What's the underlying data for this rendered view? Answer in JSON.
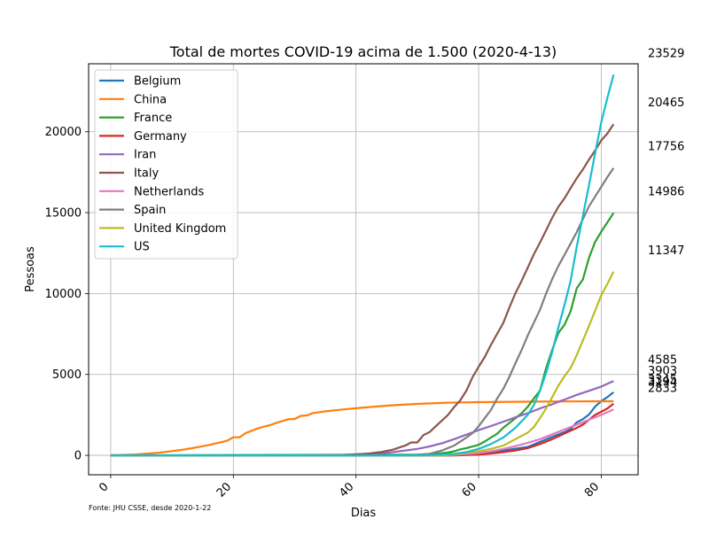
{
  "chart_data": {
    "type": "line",
    "title": "Total de mortes COVID-19 acima de 1.500 (2020-4-13)",
    "xlabel": "Dias",
    "ylabel": "Pessoas",
    "source": "Fonte: JHU CSSE, desde 2020-1-22",
    "xlim": [
      -3.6,
      86
    ],
    "ylim": [
      -1200,
      24200
    ],
    "x_ticks": [
      0,
      20,
      40,
      60,
      80
    ],
    "y_ticks": [
      0,
      5000,
      10000,
      15000,
      20000
    ],
    "grid": true,
    "legend_position": "upper left",
    "series": [
      {
        "name": "Belgium",
        "color": "#1f77b4",
        "end_label": "3903",
        "points": [
          [
            0,
            0
          ],
          [
            55,
            0
          ],
          [
            60,
            60
          ],
          [
            64,
            300
          ],
          [
            68,
            520
          ],
          [
            70,
            830
          ],
          [
            72,
            1150
          ],
          [
            74,
            1440
          ],
          [
            75,
            1630
          ],
          [
            76,
            2040
          ],
          [
            77,
            2240
          ],
          [
            78,
            2520
          ],
          [
            79,
            3020
          ],
          [
            80,
            3350
          ],
          [
            81,
            3600
          ],
          [
            82,
            3903
          ]
        ]
      },
      {
        "name": "China",
        "color": "#ff7f0e",
        "end_label": "3345",
        "points": [
          [
            0,
            17
          ],
          [
            2,
            26
          ],
          [
            4,
            56
          ],
          [
            6,
            106
          ],
          [
            8,
            170
          ],
          [
            10,
            259
          ],
          [
            12,
            361
          ],
          [
            14,
            490
          ],
          [
            16,
            638
          ],
          [
            18,
            813
          ],
          [
            19,
            910
          ],
          [
            20,
            1113
          ],
          [
            21,
            1118
          ],
          [
            22,
            1371
          ],
          [
            23,
            1523
          ],
          [
            24,
            1666
          ],
          [
            25,
            1770
          ],
          [
            26,
            1868
          ],
          [
            27,
            2007
          ],
          [
            28,
            2122
          ],
          [
            29,
            2239
          ],
          [
            30,
            2250
          ],
          [
            31,
            2442
          ],
          [
            32,
            2467
          ],
          [
            33,
            2615
          ],
          [
            35,
            2717
          ],
          [
            38,
            2838
          ],
          [
            40,
            2912
          ],
          [
            43,
            3012
          ],
          [
            46,
            3099
          ],
          [
            50,
            3180
          ],
          [
            55,
            3255
          ],
          [
            60,
            3290
          ],
          [
            66,
            3310
          ],
          [
            70,
            3320
          ],
          [
            74,
            3335
          ],
          [
            82,
            3345
          ]
        ]
      },
      {
        "name": "France",
        "color": "#2ca02c",
        "end_label": "14986",
        "points": [
          [
            0,
            0
          ],
          [
            50,
            50
          ],
          [
            53,
            100
          ],
          [
            55,
            180
          ],
          [
            56,
            250
          ],
          [
            57,
            370
          ],
          [
            58,
            450
          ],
          [
            60,
            650
          ],
          [
            61,
            860
          ],
          [
            62,
            1100
          ],
          [
            63,
            1330
          ],
          [
            64,
            1700
          ],
          [
            65,
            2000
          ],
          [
            66,
            2300
          ],
          [
            67,
            2600
          ],
          [
            68,
            3000
          ],
          [
            69,
            3520
          ],
          [
            70,
            4000
          ],
          [
            71,
            5390
          ],
          [
            72,
            6520
          ],
          [
            73,
            7560
          ],
          [
            74,
            8080
          ],
          [
            75,
            8910
          ],
          [
            76,
            10330
          ],
          [
            77,
            10870
          ],
          [
            78,
            12210
          ],
          [
            79,
            13200
          ],
          [
            80,
            13830
          ],
          [
            81,
            14400
          ],
          [
            82,
            14986
          ]
        ]
      },
      {
        "name": "Germany",
        "color": "#d62728",
        "end_label": "3194",
        "points": [
          [
            0,
            0
          ],
          [
            56,
            0
          ],
          [
            60,
            40
          ],
          [
            63,
            150
          ],
          [
            66,
            300
          ],
          [
            68,
            450
          ],
          [
            70,
            700
          ],
          [
            72,
            1000
          ],
          [
            74,
            1350
          ],
          [
            76,
            1700
          ],
          [
            77,
            1900
          ],
          [
            78,
            2200
          ],
          [
            79,
            2500
          ],
          [
            80,
            2700
          ],
          [
            81,
            2900
          ],
          [
            82,
            3194
          ]
        ]
      },
      {
        "name": "Iran",
        "color": "#9467bd",
        "end_label": "4585",
        "points": [
          [
            0,
            0
          ],
          [
            28,
            0
          ],
          [
            34,
            10
          ],
          [
            38,
            30
          ],
          [
            42,
            90
          ],
          [
            45,
            150
          ],
          [
            48,
            300
          ],
          [
            50,
            400
          ],
          [
            52,
            550
          ],
          [
            54,
            750
          ],
          [
            56,
            1000
          ],
          [
            58,
            1280
          ],
          [
            60,
            1560
          ],
          [
            62,
            1810
          ],
          [
            64,
            2080
          ],
          [
            66,
            2350
          ],
          [
            68,
            2600
          ],
          [
            70,
            2900
          ],
          [
            72,
            3160
          ],
          [
            74,
            3450
          ],
          [
            76,
            3740
          ],
          [
            78,
            3990
          ],
          [
            80,
            4250
          ],
          [
            82,
            4585
          ]
        ]
      },
      {
        "name": "Italy",
        "color": "#8c564b",
        "end_label": "20465",
        "points": [
          [
            0,
            0
          ],
          [
            34,
            0
          ],
          [
            38,
            20
          ],
          [
            40,
            60
          ],
          [
            42,
            110
          ],
          [
            44,
            200
          ],
          [
            46,
            350
          ],
          [
            48,
            600
          ],
          [
            49,
            800
          ],
          [
            50,
            800
          ],
          [
            51,
            1250
          ],
          [
            52,
            1440
          ],
          [
            53,
            1800
          ],
          [
            54,
            2150
          ],
          [
            55,
            2500
          ],
          [
            56,
            2980
          ],
          [
            57,
            3400
          ],
          [
            58,
            4000
          ],
          [
            59,
            4830
          ],
          [
            60,
            5480
          ],
          [
            61,
            6080
          ],
          [
            62,
            6820
          ],
          [
            63,
            7500
          ],
          [
            64,
            8170
          ],
          [
            65,
            9130
          ],
          [
            66,
            10020
          ],
          [
            67,
            10780
          ],
          [
            68,
            11590
          ],
          [
            69,
            12430
          ],
          [
            70,
            13150
          ],
          [
            71,
            13910
          ],
          [
            72,
            14680
          ],
          [
            73,
            15360
          ],
          [
            74,
            15890
          ],
          [
            75,
            16520
          ],
          [
            76,
            17130
          ],
          [
            77,
            17670
          ],
          [
            78,
            18280
          ],
          [
            79,
            18850
          ],
          [
            80,
            19470
          ],
          [
            81,
            19900
          ],
          [
            82,
            20465
          ]
        ]
      },
      {
        "name": "Netherlands",
        "color": "#e377c2",
        "end_label": "2833",
        "points": [
          [
            0,
            0
          ],
          [
            54,
            0
          ],
          [
            56,
            30
          ],
          [
            58,
            80
          ],
          [
            60,
            140
          ],
          [
            62,
            250
          ],
          [
            64,
            400
          ],
          [
            66,
            570
          ],
          [
            68,
            770
          ],
          [
            70,
            1000
          ],
          [
            72,
            1300
          ],
          [
            74,
            1600
          ],
          [
            76,
            1900
          ],
          [
            78,
            2200
          ],
          [
            80,
            2500
          ],
          [
            82,
            2833
          ]
        ]
      },
      {
        "name": "Spain",
        "color": "#7f7f7f",
        "end_label": "17756",
        "points": [
          [
            0,
            0
          ],
          [
            48,
            0
          ],
          [
            50,
            20
          ],
          [
            52,
            100
          ],
          [
            54,
            300
          ],
          [
            56,
            600
          ],
          [
            58,
            1100
          ],
          [
            59,
            1380
          ],
          [
            60,
            1800
          ],
          [
            61,
            2300
          ],
          [
            62,
            2800
          ],
          [
            63,
            3500
          ],
          [
            64,
            4100
          ],
          [
            65,
            4850
          ],
          [
            66,
            5700
          ],
          [
            67,
            6500
          ],
          [
            68,
            7400
          ],
          [
            69,
            8200
          ],
          [
            70,
            9000
          ],
          [
            71,
            10000
          ],
          [
            72,
            10900
          ],
          [
            73,
            11700
          ],
          [
            74,
            12400
          ],
          [
            75,
            13100
          ],
          [
            76,
            13800
          ],
          [
            77,
            14600
          ],
          [
            78,
            15400
          ],
          [
            79,
            16000
          ],
          [
            80,
            16600
          ],
          [
            81,
            17200
          ],
          [
            82,
            17756
          ]
        ]
      },
      {
        "name": "United Kingdom",
        "color": "#bcbd22",
        "end_label": "11347",
        "points": [
          [
            0,
            0
          ],
          [
            54,
            0
          ],
          [
            56,
            50
          ],
          [
            58,
            150
          ],
          [
            60,
            250
          ],
          [
            62,
            400
          ],
          [
            64,
            600
          ],
          [
            66,
            1000
          ],
          [
            68,
            1400
          ],
          [
            69,
            1750
          ],
          [
            70,
            2300
          ],
          [
            71,
            2900
          ],
          [
            72,
            3600
          ],
          [
            73,
            4300
          ],
          [
            74,
            4900
          ],
          [
            75,
            5400
          ],
          [
            76,
            6200
          ],
          [
            77,
            7100
          ],
          [
            78,
            8000
          ],
          [
            79,
            8950
          ],
          [
            80,
            9900
          ],
          [
            81,
            10600
          ],
          [
            82,
            11347
          ]
        ]
      },
      {
        "name": "US",
        "color": "#17becf",
        "end_label": "23529",
        "points": [
          [
            0,
            0
          ],
          [
            50,
            0
          ],
          [
            54,
            50
          ],
          [
            56,
            100
          ],
          [
            58,
            200
          ],
          [
            60,
            400
          ],
          [
            62,
            700
          ],
          [
            64,
            1100
          ],
          [
            66,
            1700
          ],
          [
            68,
            2500
          ],
          [
            69,
            3100
          ],
          [
            70,
            4000
          ],
          [
            71,
            5100
          ],
          [
            72,
            6400
          ],
          [
            73,
            7900
          ],
          [
            74,
            9300
          ],
          [
            75,
            10800
          ],
          [
            76,
            12900
          ],
          [
            77,
            14800
          ],
          [
            78,
            16700
          ],
          [
            79,
            18700
          ],
          [
            80,
            20600
          ],
          [
            81,
            22100
          ],
          [
            82,
            23529
          ]
        ]
      }
    ]
  }
}
